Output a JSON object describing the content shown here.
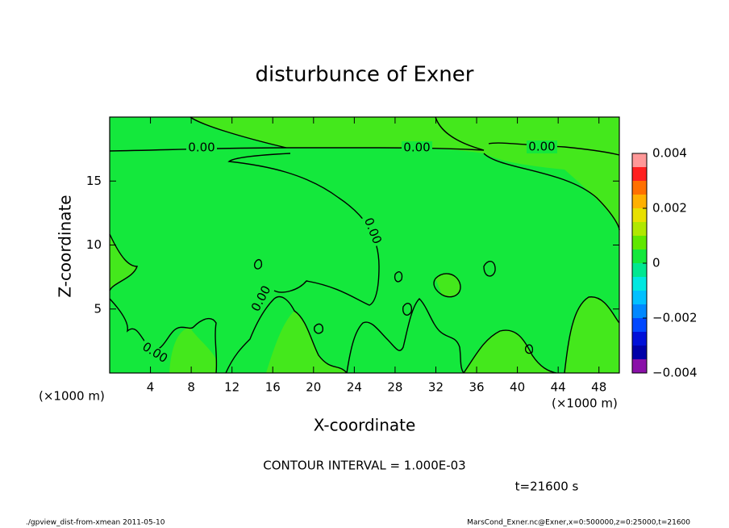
{
  "chart_data": {
    "type": "contour",
    "title": "disturbunce of Exner",
    "xlabel": "X-coordinate",
    "ylabel": "Z-coordinate",
    "x_unit": "(×1000 m)",
    "y_unit": "(×1000 m)",
    "xlim": [
      0,
      50
    ],
    "ylim": [
      0,
      20
    ],
    "xticks": [
      4,
      8,
      12,
      16,
      20,
      24,
      28,
      32,
      36,
      40,
      44,
      48
    ],
    "yticks": [
      5,
      10,
      15
    ],
    "contour_labels": [
      "0.00",
      "0.00",
      "0.00",
      "0.00",
      "0.00",
      "0.00"
    ],
    "colorbar": {
      "levels": [
        -0.004,
        -0.0035,
        -0.003,
        -0.0025,
        -0.002,
        -0.0015,
        -0.001,
        -0.0005,
        0,
        0.0005,
        0.001,
        0.0015,
        0.002,
        0.0025,
        0.003,
        0.0035,
        0.004
      ],
      "colors": [
        "#8a10a8",
        "#0000a8",
        "#0010d8",
        "#0048ff",
        "#0088ff",
        "#00c0ff",
        "#00e8e0",
        "#00e890",
        "#14e83c",
        "#60e800",
        "#b0e800",
        "#e8e000",
        "#ffb000",
        "#ff7000",
        "#ff2020",
        "#ff9898"
      ],
      "ticks": [
        {
          "value": -0.004,
          "label": "−0.004"
        },
        {
          "value": -0.002,
          "label": "−0.002"
        },
        0,
        0.002,
        0.004
      ]
    },
    "contour_interval": "CONTOUR INTERVAL = 1.000E-03",
    "time": "t=21600 s",
    "footer_left": "./gpview_dist-from-xmean  2011-05-10",
    "footer_right": "MarsCond_Exner.nc@Exner,x=0:500000,z=0:25000,t=21600"
  }
}
